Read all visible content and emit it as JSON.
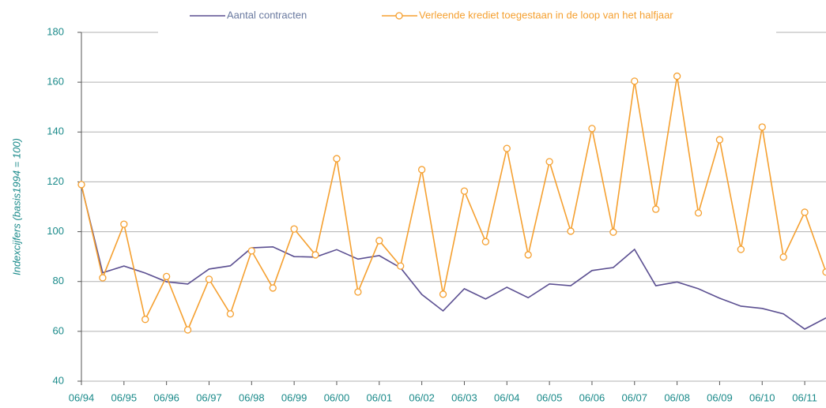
{
  "chart_data": {
    "type": "line",
    "y_label": "Indexcijfers (basis1994 = 100)",
    "categories": [
      "06/94",
      null,
      "06/95",
      null,
      "06/96",
      null,
      "06/97",
      null,
      "06/98",
      null,
      "06/99",
      null,
      "06/00",
      null,
      "06/01",
      null,
      "06/02",
      null,
      "06/03",
      null,
      "06/04",
      null,
      "06/05",
      null,
      "06/06",
      null,
      "06/07",
      null,
      "06/08",
      null,
      "06/09",
      null,
      "06/10",
      null,
      "06/11",
      null
    ],
    "series": [
      {
        "name": "Aantal contracten",
        "color": "#5b4f91",
        "marker": false,
        "values": [
          118.5,
          83.5,
          86.2,
          83.4,
          79.9,
          79,
          85,
          86.3,
          93.5,
          93.9,
          90,
          89.8,
          92.8,
          89,
          90.4,
          85.5,
          74.8,
          68.2,
          77.1,
          73,
          77.7,
          73.5,
          79,
          78.3,
          84.4,
          85.6,
          92.9,
          78.3,
          79.8,
          77.1,
          73.3,
          70.1,
          69.2,
          67,
          60.9,
          65.4
        ]
      },
      {
        "name": "Verleende krediet toegestaan in de loop van het halfjaar",
        "color": "#f5a030",
        "marker": true,
        "values": [
          118.9,
          81.5,
          103,
          64.8,
          82,
          60.6,
          80.9,
          67,
          92.3,
          77.4,
          101.1,
          90.7,
          129.3,
          75.8,
          96.4,
          86.2,
          124.9,
          74.9,
          116.3,
          96,
          133.4,
          90.7,
          128.1,
          100.2,
          141.4,
          99.8,
          160.4,
          109,
          162.4,
          107.5,
          136.9,
          92.9,
          142,
          89.8,
          107.8,
          83.8
        ]
      }
    ],
    "ylim": [
      40,
      180
    ],
    "yticks": [
      40,
      60,
      80,
      100,
      120,
      140,
      160,
      180
    ],
    "grid": true
  }
}
